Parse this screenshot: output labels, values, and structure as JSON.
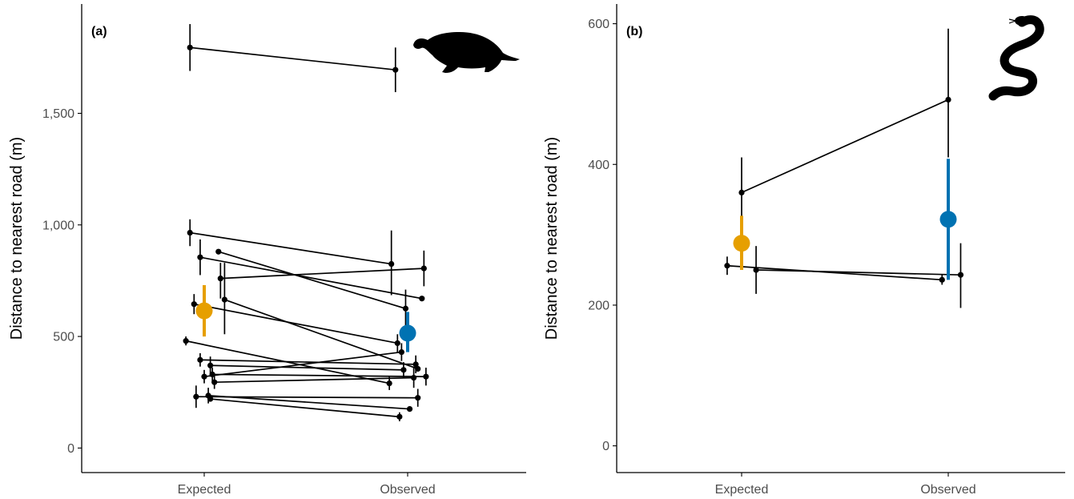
{
  "colors": {
    "expected": "#E69F00",
    "observed": "#0072B2",
    "individual": "#000000",
    "axis": "#000000",
    "tick_text": "#4d4d4d"
  },
  "chart_data": [
    {
      "type": "scatter",
      "panel_label": "(a)",
      "ylabel": "Distance to nearest road (m)",
      "xlabel": "",
      "categories": [
        "Expected",
        "Observed"
      ],
      "yticks": [
        0,
        500,
        1000,
        1500
      ],
      "ytick_labels": [
        "0",
        "500",
        "1,000",
        "1,500"
      ],
      "ylim": [
        -110,
        1990
      ],
      "icon": "turtle-icon",
      "grid": false,
      "individuals": [
        {
          "expected": {
            "x": 0.93,
            "y": 1795,
            "ylo": 1690,
            "yhi": 1900
          },
          "observed": {
            "x": 1.94,
            "y": 1695,
            "ylo": 1595,
            "yhi": 1795
          }
        },
        {
          "expected": {
            "x": 0.93,
            "y": 965,
            "ylo": 905,
            "yhi": 1025
          },
          "observed": {
            "x": 1.92,
            "y": 825,
            "ylo": 685,
            "yhi": 975
          }
        },
        {
          "expected": {
            "x": 0.98,
            "y": 855,
            "ylo": 775,
            "yhi": 935
          },
          "observed": {
            "x": 2.07,
            "y": 670,
            "ylo": 670,
            "yhi": 670
          }
        },
        {
          "expected": {
            "x": 1.07,
            "y": 880,
            "ylo": 880,
            "yhi": 880
          },
          "observed": {
            "x": 1.99,
            "y": 625,
            "ylo": 530,
            "yhi": 710
          }
        },
        {
          "expected": {
            "x": 1.08,
            "y": 760,
            "ylo": 670,
            "yhi": 830
          },
          "observed": {
            "x": 2.08,
            "y": 805,
            "ylo": 725,
            "yhi": 885
          }
        },
        {
          "expected": {
            "x": 1.1,
            "y": 665,
            "ylo": 510,
            "yhi": 830
          },
          "observed": {
            "x": 2.05,
            "y": 355,
            "ylo": 355,
            "yhi": 355
          }
        },
        {
          "expected": {
            "x": 0.95,
            "y": 645,
            "ylo": 600,
            "yhi": 690
          },
          "observed": {
            "x": 1.95,
            "y": 470,
            "ylo": 430,
            "yhi": 510
          }
        },
        {
          "expected": {
            "x": 0.91,
            "y": 480,
            "ylo": 460,
            "yhi": 500
          },
          "observed": {
            "x": 1.91,
            "y": 290,
            "ylo": 260,
            "yhi": 320
          }
        },
        {
          "expected": {
            "x": 0.98,
            "y": 395,
            "ylo": 365,
            "yhi": 425
          },
          "observed": {
            "x": 2.04,
            "y": 375,
            "ylo": 335,
            "yhi": 415
          }
        },
        {
          "expected": {
            "x": 1.03,
            "y": 370,
            "ylo": 320,
            "yhi": 410
          },
          "observed": {
            "x": 1.98,
            "y": 350,
            "ylo": 315,
            "yhi": 385
          }
        },
        {
          "expected": {
            "x": 1.04,
            "y": 330,
            "ylo": 300,
            "yhi": 360
          },
          "observed": {
            "x": 2.09,
            "y": 320,
            "ylo": 280,
            "yhi": 360
          }
        },
        {
          "expected": {
            "x": 1.0,
            "y": 320,
            "ylo": 290,
            "yhi": 350
          },
          "observed": {
            "x": 1.97,
            "y": 430,
            "ylo": 390,
            "yhi": 470
          }
        },
        {
          "expected": {
            "x": 1.05,
            "y": 295,
            "ylo": 265,
            "yhi": 325
          },
          "observed": {
            "x": 2.03,
            "y": 315,
            "ylo": 270,
            "yhi": 360
          }
        },
        {
          "expected": {
            "x": 0.96,
            "y": 230,
            "ylo": 180,
            "yhi": 280
          },
          "observed": {
            "x": 2.05,
            "y": 225,
            "ylo": 185,
            "yhi": 265
          }
        },
        {
          "expected": {
            "x": 1.02,
            "y": 235,
            "ylo": 200,
            "yhi": 270
          },
          "observed": {
            "x": 2.01,
            "y": 175,
            "ylo": 175,
            "yhi": 175
          }
        },
        {
          "expected": {
            "x": 1.03,
            "y": 220,
            "ylo": 220,
            "yhi": 220
          },
          "observed": {
            "x": 1.96,
            "y": 140,
            "ylo": 120,
            "yhi": 160
          }
        }
      ],
      "means": [
        {
          "group": "Expected",
          "x": 1.0,
          "y": 615,
          "ylo": 500,
          "yhi": 730
        },
        {
          "group": "Observed",
          "x": 2.0,
          "y": 515,
          "ylo": 430,
          "yhi": 610
        }
      ]
    },
    {
      "type": "scatter",
      "panel_label": "(b)",
      "ylabel": "Distance to nearest road (m)",
      "xlabel": "",
      "categories": [
        "Expected",
        "Observed"
      ],
      "yticks": [
        0,
        200,
        400,
        600
      ],
      "ytick_labels": [
        "0",
        "200",
        "400",
        "600"
      ],
      "ylim": [
        -38,
        628
      ],
      "icon": "snake-icon",
      "grid": false,
      "individuals": [
        {
          "expected": {
            "x": 1.0,
            "y": 360,
            "ylo": 310,
            "yhi": 410
          },
          "observed": {
            "x": 2.0,
            "y": 492,
            "ylo": 410,
            "yhi": 593
          }
        },
        {
          "expected": {
            "x": 0.93,
            "y": 256,
            "ylo": 243,
            "yhi": 269
          },
          "observed": {
            "x": 1.97,
            "y": 236,
            "ylo": 229,
            "yhi": 243
          }
        },
        {
          "expected": {
            "x": 1.07,
            "y": 250,
            "ylo": 216,
            "yhi": 284
          },
          "observed": {
            "x": 2.06,
            "y": 243,
            "ylo": 196,
            "yhi": 288
          }
        }
      ],
      "means": [
        {
          "group": "Expected",
          "x": 1.0,
          "y": 288,
          "ylo": 250,
          "yhi": 327
        },
        {
          "group": "Observed",
          "x": 2.0,
          "y": 322,
          "ylo": 236,
          "yhi": 408
        }
      ]
    }
  ]
}
